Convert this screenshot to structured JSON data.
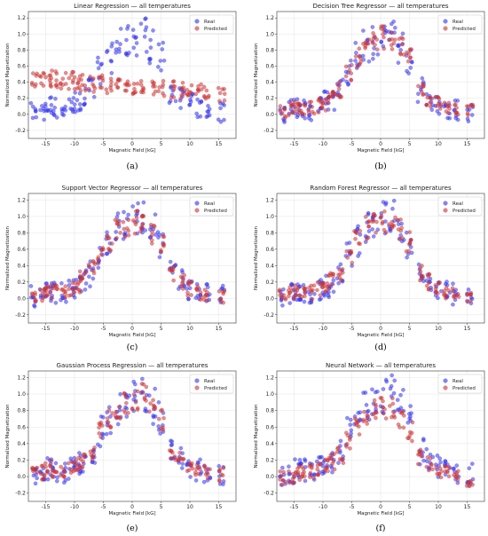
{
  "chart_data": [
    {
      "id": "a",
      "type": "scatter",
      "title": "Linear Regression — all temperatures",
      "xlabel": "Magnetic Field [kG]",
      "ylabel": "Normalized Magnetization",
      "subcaption": "(a)",
      "xlim": [
        -18,
        18
      ],
      "ylim": [
        -0.3,
        1.28
      ],
      "xticks": [
        "-15",
        "-10",
        "-5",
        "0",
        "5",
        "10",
        "15"
      ],
      "yticks": [
        "-0.2",
        "0.0",
        "0.2",
        "0.4",
        "0.6",
        "0.8",
        "1.0",
        "1.2"
      ],
      "grid": true,
      "legend_position": "top-right",
      "series": [
        {
          "name": "Real",
          "color": "#3333ee",
          "x": [
            -17,
            -15.5,
            -14.5,
            -13.5,
            -12,
            -10.5,
            -9.5,
            -8.5,
            -7,
            -5.5,
            -4,
            -2.5,
            -1,
            0.5,
            2,
            3.5,
            5,
            7,
            8.5,
            10,
            11.5,
            13,
            15.5
          ],
          "y": [
            0.03,
            0.05,
            0.1,
            0.08,
            0.06,
            0.1,
            0.15,
            0.2,
            0.3,
            0.55,
            0.7,
            0.85,
            0.9,
            0.95,
            1.0,
            0.85,
            0.7,
            0.3,
            0.2,
            0.12,
            0.08,
            0.05,
            0.03
          ]
        },
        {
          "name": "Predicted",
          "color": "#cc3333",
          "x": [
            -17,
            -15.5,
            -14.5,
            -13.5,
            -12,
            -10.5,
            -9.5,
            -8.5,
            -7,
            -5.5,
            -4,
            -2.5,
            -1,
            0.5,
            2,
            3.5,
            5,
            7,
            8.5,
            10,
            11.5,
            13,
            15.5
          ],
          "y": [
            0.46,
            0.45,
            0.45,
            0.44,
            0.43,
            0.42,
            0.41,
            0.4,
            0.39,
            0.38,
            0.37,
            0.36,
            0.35,
            0.35,
            0.34,
            0.33,
            0.33,
            0.31,
            0.3,
            0.29,
            0.28,
            0.27,
            0.26
          ]
        }
      ]
    },
    {
      "id": "b",
      "type": "scatter",
      "title": "Decision Tree Regressor — all temperatures",
      "xlabel": "Magnetic Field [kG]",
      "ylabel": "Normalized Magnetization",
      "subcaption": "(b)",
      "xlim": [
        -18,
        18
      ],
      "ylim": [
        -0.3,
        1.28
      ],
      "xticks": [
        "-15",
        "-10",
        "-5",
        "0",
        "5",
        "10",
        "15"
      ],
      "yticks": [
        "-0.2",
        "0.0",
        "0.2",
        "0.4",
        "0.6",
        "0.8",
        "1.0",
        "1.2"
      ],
      "grid": true,
      "legend_position": "top-right",
      "series": [
        {
          "name": "Real",
          "color": "#3333ee",
          "x": [
            -17,
            -15.5,
            -14.5,
            -13.5,
            -12,
            -10.5,
            -9.5,
            -8.5,
            -7,
            -5.5,
            -4,
            -2.5,
            -1,
            0.5,
            2,
            3.5,
            5,
            7,
            8.5,
            10,
            11.5,
            13,
            15.5
          ],
          "y": [
            0.03,
            0.05,
            0.1,
            0.08,
            0.06,
            0.1,
            0.15,
            0.2,
            0.3,
            0.55,
            0.7,
            0.85,
            0.9,
            0.95,
            1.0,
            0.85,
            0.7,
            0.3,
            0.2,
            0.12,
            0.08,
            0.05,
            0.03
          ]
        },
        {
          "name": "Predicted",
          "color": "#cc3333",
          "x": [
            -17,
            -15.5,
            -14.5,
            -13.5,
            -12,
            -10.5,
            -9.5,
            -8.5,
            -7,
            -5.5,
            -4,
            -2.5,
            -1,
            0.5,
            2,
            3.5,
            5,
            7,
            8.5,
            10,
            11.5,
            13,
            15.5
          ],
          "y": [
            0.04,
            0.06,
            0.09,
            0.07,
            0.07,
            0.11,
            0.14,
            0.21,
            0.31,
            0.5,
            0.72,
            0.88,
            0.92,
            0.97,
            0.95,
            0.83,
            0.68,
            0.31,
            0.19,
            0.13,
            0.09,
            0.06,
            0.04
          ]
        }
      ]
    },
    {
      "id": "c",
      "type": "scatter",
      "title": "Support Vector Regressor — all temperatures",
      "xlabel": "Magnetic Field [kG]",
      "ylabel": "Normalized Magnetization",
      "subcaption": "(c)",
      "xlim": [
        -18,
        18
      ],
      "ylim": [
        -0.3,
        1.28
      ],
      "xticks": [
        "-15",
        "-10",
        "-5",
        "0",
        "5",
        "10",
        "15"
      ],
      "yticks": [
        "-0.2",
        "0.0",
        "0.2",
        "0.4",
        "0.6",
        "0.8",
        "1.0",
        "1.2"
      ],
      "grid": true,
      "legend_position": "top-right",
      "series": [
        {
          "name": "Real",
          "color": "#3333ee",
          "x": [
            -17,
            -15.5,
            -14.5,
            -13.5,
            -12,
            -10.5,
            -9.5,
            -8.5,
            -7,
            -5.5,
            -4,
            -2.5,
            -1,
            0.5,
            2,
            3.5,
            5,
            7,
            8.5,
            10,
            11.5,
            13,
            15.5
          ],
          "y": [
            0.03,
            0.05,
            0.1,
            0.08,
            0.06,
            0.1,
            0.15,
            0.2,
            0.3,
            0.55,
            0.7,
            0.85,
            0.9,
            0.95,
            1.0,
            0.85,
            0.7,
            0.3,
            0.2,
            0.12,
            0.08,
            0.05,
            0.03
          ]
        },
        {
          "name": "Predicted",
          "color": "#cc3333",
          "x": [
            -17,
            -15.5,
            -14.5,
            -13.5,
            -12,
            -10.5,
            -9.5,
            -8.5,
            -7,
            -5.5,
            -4,
            -2.5,
            -1,
            0.5,
            2,
            3.5,
            5,
            7,
            8.5,
            10,
            11.5,
            13,
            15.5
          ],
          "y": [
            0.02,
            0.04,
            0.08,
            0.08,
            0.08,
            0.12,
            0.17,
            0.25,
            0.35,
            0.52,
            0.7,
            0.83,
            0.9,
            0.93,
            0.92,
            0.8,
            0.65,
            0.32,
            0.2,
            0.12,
            0.07,
            0.04,
            0.02
          ]
        }
      ]
    },
    {
      "id": "d",
      "type": "scatter",
      "title": "Random Forest Regressor — all temperatures",
      "xlabel": "Magnetic Field [kG]",
      "ylabel": "Normalized Magnetization",
      "subcaption": "(d)",
      "xlim": [
        -18,
        18
      ],
      "ylim": [
        -0.3,
        1.28
      ],
      "xticks": [
        "-15",
        "-10",
        "-5",
        "0",
        "5",
        "10",
        "15"
      ],
      "yticks": [
        "-0.2",
        "0.0",
        "0.2",
        "0.4",
        "0.6",
        "0.8",
        "1.0",
        "1.2"
      ],
      "grid": true,
      "legend_position": "top-right",
      "series": [
        {
          "name": "Real",
          "color": "#3333ee",
          "x": [
            -17,
            -15.5,
            -14.5,
            -13.5,
            -12,
            -10.5,
            -9.5,
            -8.5,
            -7,
            -5.5,
            -4,
            -2.5,
            -1,
            0.5,
            2,
            3.5,
            5,
            7,
            8.5,
            10,
            11.5,
            13,
            15.5
          ],
          "y": [
            0.03,
            0.05,
            0.1,
            0.08,
            0.06,
            0.1,
            0.15,
            0.2,
            0.3,
            0.55,
            0.7,
            0.85,
            0.9,
            0.95,
            1.0,
            0.85,
            0.7,
            0.3,
            0.2,
            0.12,
            0.08,
            0.05,
            0.03
          ]
        },
        {
          "name": "Predicted",
          "color": "#cc3333",
          "x": [
            -17,
            -15.5,
            -14.5,
            -13.5,
            -12,
            -10.5,
            -9.5,
            -8.5,
            -7,
            -5.5,
            -4,
            -2.5,
            -1,
            0.5,
            2,
            3.5,
            5,
            7,
            8.5,
            10,
            11.5,
            13,
            15.5
          ],
          "y": [
            0.04,
            0.05,
            0.09,
            0.08,
            0.07,
            0.11,
            0.15,
            0.21,
            0.31,
            0.53,
            0.71,
            0.86,
            0.91,
            0.96,
            0.97,
            0.84,
            0.69,
            0.3,
            0.2,
            0.12,
            0.08,
            0.05,
            0.03
          ]
        }
      ]
    },
    {
      "id": "e",
      "type": "scatter",
      "title": "Gaussian Process Regression — all temperatures",
      "xlabel": "Magnetic Field [kG]",
      "ylabel": "Normalized Magnetization",
      "subcaption": "(e)",
      "xlim": [
        -18,
        18
      ],
      "ylim": [
        -0.3,
        1.28
      ],
      "xticks": [
        "-15",
        "-10",
        "-5",
        "0",
        "5",
        "10",
        "15"
      ],
      "yticks": [
        "-0.2",
        "0.0",
        "0.2",
        "0.4",
        "0.6",
        "0.8",
        "1.0",
        "1.2"
      ],
      "grid": true,
      "legend_position": "top-right",
      "series": [
        {
          "name": "Real",
          "color": "#3333ee",
          "x": [
            -17,
            -15.5,
            -14.5,
            -13.5,
            -12,
            -10.5,
            -9.5,
            -8.5,
            -7,
            -5.5,
            -4,
            -2.5,
            -1,
            0.5,
            2,
            3.5,
            5,
            7,
            8.5,
            10,
            11.5,
            13,
            15.5
          ],
          "y": [
            0.03,
            0.05,
            0.1,
            0.08,
            0.06,
            0.1,
            0.15,
            0.2,
            0.3,
            0.55,
            0.7,
            0.85,
            0.9,
            0.95,
            1.0,
            0.85,
            0.7,
            0.3,
            0.2,
            0.12,
            0.08,
            0.05,
            0.03
          ]
        },
        {
          "name": "Predicted",
          "color": "#cc3333",
          "x": [
            -17,
            -15.5,
            -14.5,
            -13.5,
            -12,
            -10.5,
            -9.5,
            -8.5,
            -7,
            -5.5,
            -4,
            -2.5,
            -1,
            0.5,
            2,
            3.5,
            5,
            7,
            8.5,
            10,
            11.5,
            13,
            15.5
          ],
          "y": [
            0.03,
            0.05,
            0.1,
            0.08,
            0.07,
            0.1,
            0.15,
            0.2,
            0.3,
            0.54,
            0.7,
            0.85,
            0.9,
            0.95,
            0.98,
            0.85,
            0.7,
            0.3,
            0.2,
            0.12,
            0.08,
            0.05,
            0.03
          ]
        }
      ]
    },
    {
      "id": "f",
      "type": "scatter",
      "title": "Neural Network — all temperatures",
      "xlabel": "Magnetic Field [kG]",
      "ylabel": "Normalized Magnetization",
      "subcaption": "(f)",
      "xlim": [
        -18,
        18
      ],
      "ylim": [
        -0.3,
        1.28
      ],
      "xticks": [
        "-15",
        "-10",
        "-5",
        "0",
        "5",
        "10",
        "15"
      ],
      "yticks": [
        "-0.2",
        "0.0",
        "0.2",
        "0.4",
        "0.6",
        "0.8",
        "1.0",
        "1.2"
      ],
      "grid": true,
      "legend_position": "top-right",
      "series": [
        {
          "name": "Real",
          "color": "#3333ee",
          "x": [
            -17,
            -15.5,
            -14.5,
            -13.5,
            -12,
            -10.5,
            -9.5,
            -8.5,
            -7,
            -5.5,
            -4,
            -2.5,
            -1,
            0.5,
            2,
            3.5,
            5,
            7,
            8.5,
            10,
            11.5,
            13,
            15.5
          ],
          "y": [
            0.03,
            0.05,
            0.1,
            0.08,
            0.06,
            0.1,
            0.15,
            0.2,
            0.3,
            0.55,
            0.7,
            0.85,
            0.9,
            0.95,
            1.0,
            0.85,
            0.7,
            0.3,
            0.2,
            0.12,
            0.08,
            0.05,
            0.03
          ]
        },
        {
          "name": "Predicted",
          "color": "#cc3333",
          "x": [
            -17,
            -15.5,
            -14.5,
            -13.5,
            -12,
            -10.5,
            -9.5,
            -8.5,
            -7,
            -5.5,
            -4,
            -2.5,
            -1,
            0.5,
            2,
            3.5,
            5,
            7,
            8.5,
            10,
            11.5,
            13,
            15.5
          ],
          "y": [
            -0.02,
            0.0,
            0.04,
            0.05,
            0.06,
            0.08,
            0.12,
            0.18,
            0.26,
            0.45,
            0.62,
            0.74,
            0.8,
            0.82,
            0.84,
            0.7,
            0.55,
            0.25,
            0.15,
            0.08,
            0.04,
            0.02,
            -0.03
          ]
        }
      ]
    }
  ]
}
